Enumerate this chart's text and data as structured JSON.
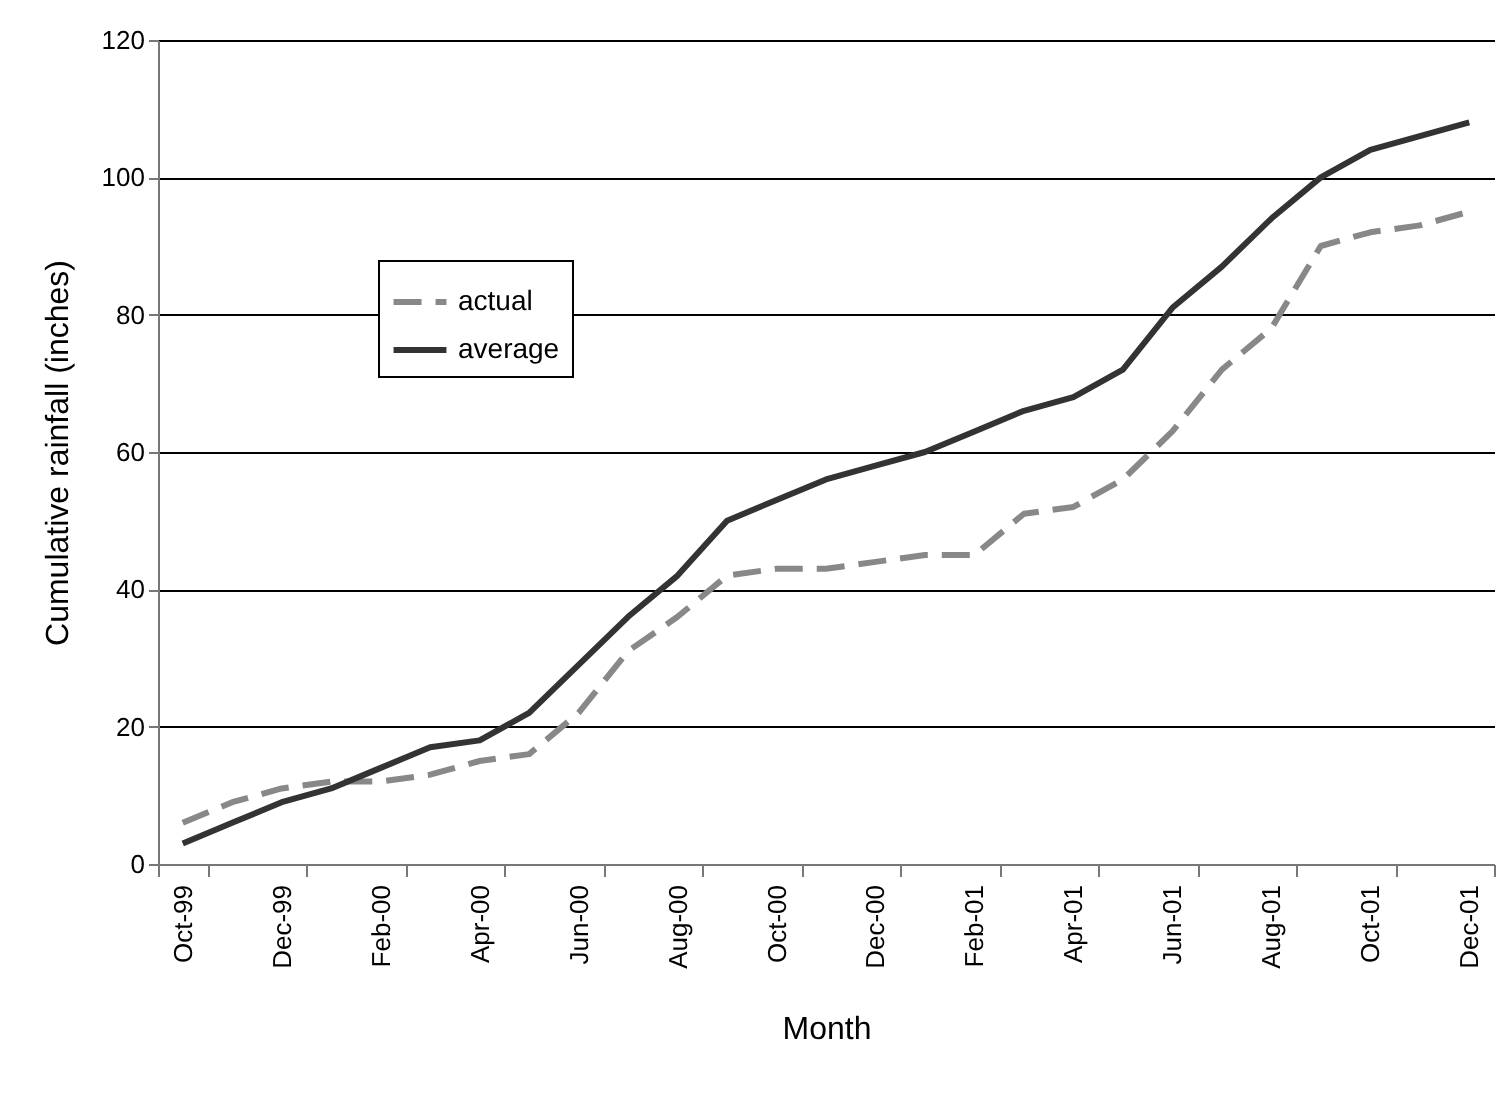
{
  "chart_data": {
    "type": "line",
    "xlabel": "Month",
    "ylabel": "Cumulative rainfall (inches)",
    "categories": [
      "Oct-99",
      null,
      "Dec-99",
      null,
      "Feb-00",
      null,
      "Apr-00",
      null,
      "Jun-00",
      null,
      "Aug-00",
      null,
      "Oct-00",
      null,
      "Dec-00",
      null,
      "Feb-01",
      null,
      "Apr-01",
      null,
      "Jun-01",
      null,
      "Aug-01",
      null,
      "Oct-01",
      null,
      "Dec-01"
    ],
    "series": [
      {
        "name": "actual",
        "color": "#888888",
        "line_style": "dashed",
        "values": [
          6,
          9,
          11,
          12,
          12,
          13,
          15,
          16,
          22,
          31,
          36,
          42,
          43,
          43,
          44,
          45,
          45,
          51,
          52,
          56,
          63,
          72,
          78,
          90,
          92,
          93,
          95
        ]
      },
      {
        "name": "average",
        "color": "#333333",
        "line_style": "solid",
        "values": [
          3,
          6,
          9,
          11,
          14,
          17,
          18,
          22,
          29,
          36,
          42,
          50,
          53,
          56,
          58,
          60,
          63,
          66,
          68,
          72,
          81,
          87,
          94,
          100,
          104,
          106,
          108
        ]
      }
    ],
    "ylim": [
      0,
      120
    ],
    "yticks": [
      0,
      20,
      40,
      60,
      80,
      100,
      120
    ],
    "grid": "y",
    "legend": "top left"
  }
}
